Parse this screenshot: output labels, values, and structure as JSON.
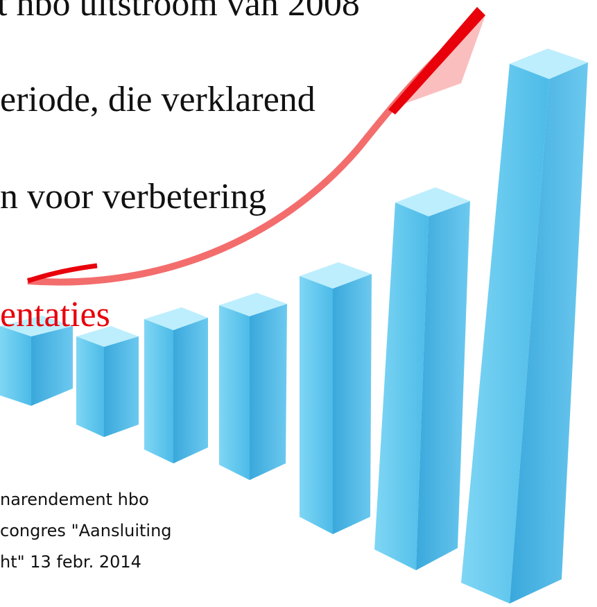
{
  "slide": {
    "lines": [
      "t hbo uitstroom van 2008",
      "eriode, die verklarend",
      "n voor verbetering",
      "entaties"
    ],
    "footer": [
      "narendement hbo",
      "congres \"Aansluiting",
      "ht\" 13 febr. 2014"
    ]
  }
}
